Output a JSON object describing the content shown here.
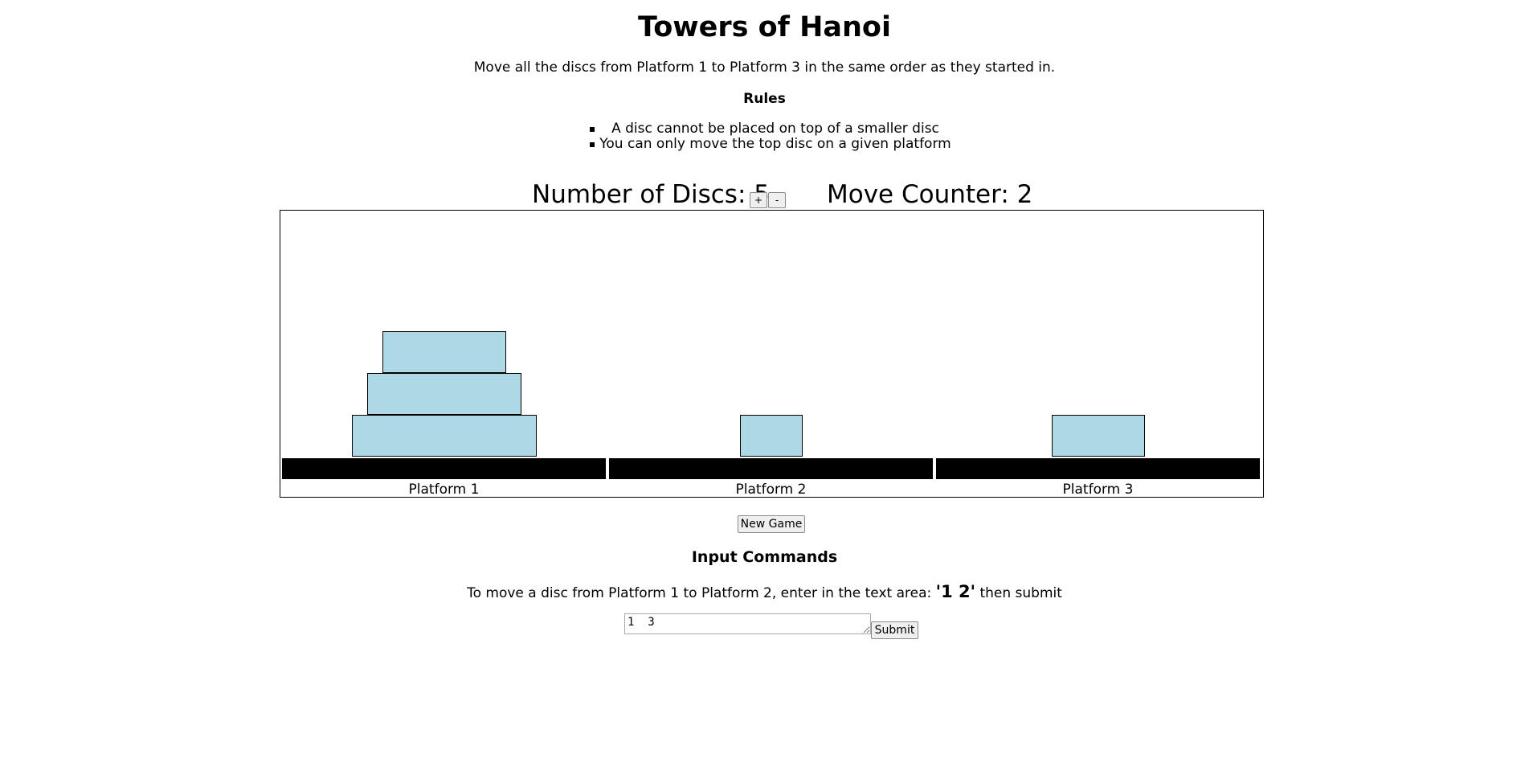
{
  "header": {
    "title": "Towers of Hanoi",
    "intro": "Move all the discs from Platform 1 to Platform 3 in the same order as they started in.",
    "rules_heading": "Rules",
    "rules": [
      "A disc cannot be placed on top of a smaller disc",
      "You can only move the top disc on a given platform"
    ]
  },
  "stats": {
    "discs_label": "Number of Discs: 5",
    "plus_label": "+",
    "minus_label": "-",
    "moves_label": "Move Counter: 2"
  },
  "game": {
    "disc_color": "#add8e6",
    "base_color": "#000000",
    "total_discs": 5,
    "moves": 2,
    "platforms": [
      {
        "label": "Platform 1",
        "discs": [
          5,
          4,
          3
        ]
      },
      {
        "label": "Platform 2",
        "discs": [
          1
        ]
      },
      {
        "label": "Platform 3",
        "discs": [
          2
        ]
      }
    ]
  },
  "controls": {
    "new_game_label": "New Game"
  },
  "commands": {
    "heading": "Input Commands",
    "instructions_before": "To move a disc from Platform 1 to Platform 2, enter in the text area: ",
    "instructions_example": "'1 2'",
    "instructions_after": " then submit",
    "input_value": "1  3",
    "submit_label": "Submit"
  }
}
